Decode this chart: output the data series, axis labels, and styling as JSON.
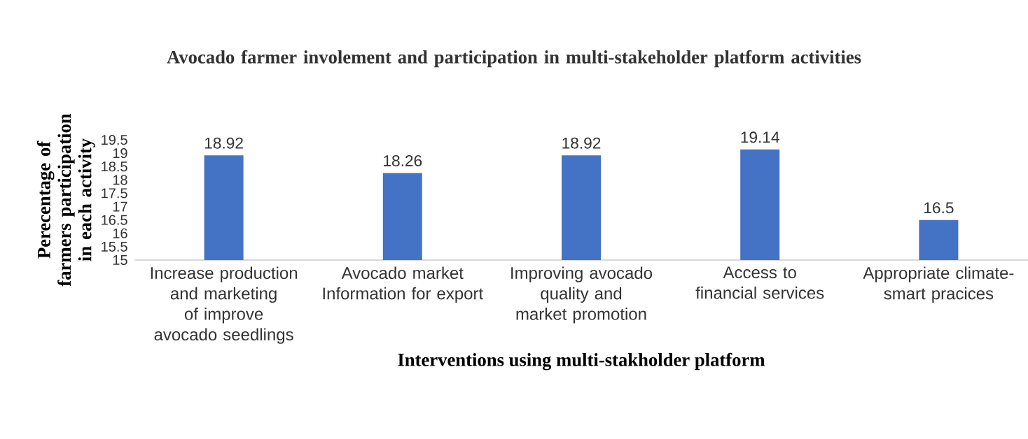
{
  "chart_data": {
    "type": "bar",
    "title": "Avocado farmer involement and participation in multi-stakeholder platform activities",
    "xlabel": "Interventions  using multi-stakholder platform",
    "ylabel": "Perecentage of farmers participation  in each activity",
    "categories": [
      "Increase production and marketing of improve avocado seedlings",
      "Avocado market Information for export",
      "Improving avocado quality and market promotion",
      "Access to financial services",
      "Appropriate climate-smart pracices"
    ],
    "values": [
      18.92,
      18.26,
      18.92,
      19.14,
      16.5
    ],
    "color": "#4472c4",
    "ylim": [
      15,
      19.5
    ],
    "yticks": [
      15,
      15.5,
      16,
      16.5,
      17,
      17.5,
      18,
      18.5,
      19,
      19.5
    ],
    "data_labels": true,
    "grid": false
  }
}
